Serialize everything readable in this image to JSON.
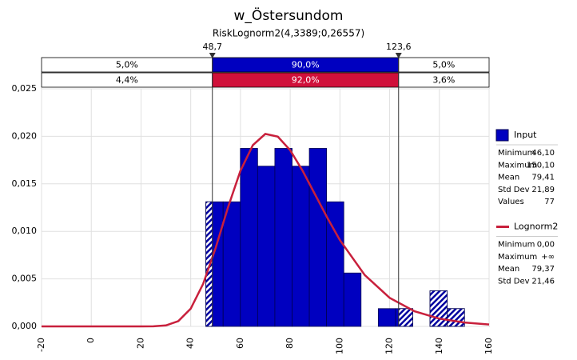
{
  "chart_data": {
    "type": "histogram",
    "title": "w_Östersundom",
    "subtitle": "RiskLognorm2(4,3389;0,26557)",
    "bins": [
      46.1,
      53.03,
      59.97,
      66.9,
      73.83,
      80.77,
      87.7,
      94.63,
      101.57,
      108.5,
      115.43,
      122.37,
      129.3,
      136.23,
      143.17,
      150.1
    ],
    "values": [
      0.01311,
      0.01311,
      0.01873,
      0.01686,
      0.01873,
      0.01686,
      0.01873,
      0.01311,
      0.00562,
      0,
      0.00187,
      0.00187,
      0,
      0.00375,
      0.00187
    ],
    "color": "#0000c0",
    "curve": {
      "name": "Lognorm2",
      "color": "#c8203c",
      "x": [
        -20,
        0,
        20,
        25,
        30,
        35,
        40,
        45,
        50,
        55,
        60,
        65,
        70,
        75,
        80,
        85,
        90,
        95,
        100,
        110,
        120,
        130,
        140,
        150,
        160
      ],
      "y": [
        0,
        0,
        0,
        8.2e-06,
        9.83e-05,
        0.000552,
        0.001879,
        0.004481,
        0.008253,
        0.012526,
        0.016381,
        0.019076,
        0.020252,
        0.019964,
        0.018532,
        0.016373,
        0.013892,
        0.011394,
        0.009086,
        0.005404,
        0.003006,
        0.001594,
        0.000817,
        0.000409,
        0.000201
      ]
    },
    "xlim": [
      -20,
      160
    ],
    "xticks": [
      -20,
      0,
      20,
      40,
      60,
      80,
      100,
      120,
      140,
      160
    ],
    "ylim": [
      0,
      0.025
    ],
    "yticks": [
      {
        "value": 0,
        "label": "0,000"
      },
      {
        "value": 0.005,
        "label": "0,005"
      },
      {
        "value": 0.01,
        "label": "0,010"
      },
      {
        "value": 0.015,
        "label": "0,015"
      },
      {
        "value": 0.02,
        "label": "0,020"
      },
      {
        "value": 0.025,
        "label": "0,025"
      }
    ],
    "grid": true,
    "delimiters": [
      {
        "value": 48.7,
        "label": "48,7"
      },
      {
        "value": 123.6,
        "label": "123,6"
      }
    ],
    "bands": [
      {
        "color": "#0000c0",
        "values": [
          {
            "value": 5,
            "label": "5,0%"
          },
          {
            "value": 90,
            "label": "90,0%"
          },
          {
            "value": 5,
            "label": "5,0%"
          }
        ]
      },
      {
        "color": "#d0103a",
        "values": [
          {
            "value": 4.4,
            "label": "4,4%"
          },
          {
            "value": 92,
            "label": "92,0%"
          },
          {
            "value": 3.6,
            "label": "3,6%"
          }
        ]
      }
    ],
    "legend": [
      {
        "name": "Input",
        "stats": [
          [
            "Minimum",
            "46,10"
          ],
          [
            "Maximum",
            "150,10"
          ],
          [
            "Mean",
            "79,41"
          ],
          [
            "Std Dev",
            "21,89"
          ],
          [
            "Values",
            "77"
          ]
        ]
      },
      {
        "name": "Lognorm2",
        "stats": [
          [
            "Minimum",
            "0,00"
          ],
          [
            "Maximum",
            "+∞"
          ],
          [
            "Mean",
            "79,37"
          ],
          [
            "Std Dev",
            "21,46"
          ]
        ]
      }
    ]
  }
}
